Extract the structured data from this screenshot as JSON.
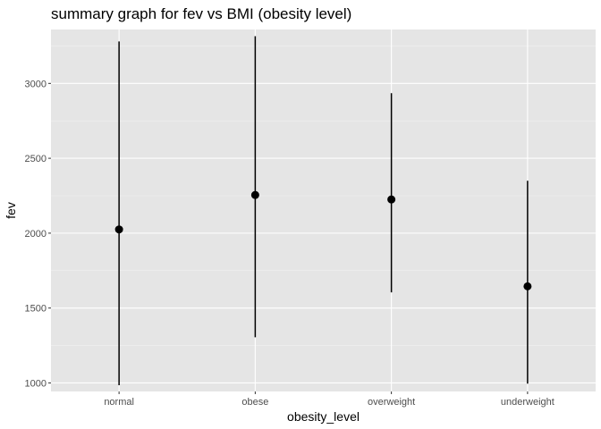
{
  "chart_data": {
    "type": "scatter",
    "title": "summary graph for fev vs BMI (obesity level)",
    "xlabel": "obesity_level",
    "ylabel": "fev",
    "categories": [
      "normal",
      "obese",
      "overweight",
      "underweight"
    ],
    "points": [
      {
        "x": "normal",
        "y": 2025,
        "ymin": 985,
        "ymax": 3280
      },
      {
        "x": "obese",
        "y": 2255,
        "ymin": 1305,
        "ymax": 3315
      },
      {
        "x": "overweight",
        "y": 2225,
        "ymin": 1605,
        "ymax": 2935
      },
      {
        "x": "underweight",
        "y": 1645,
        "ymin": 995,
        "ymax": 2350
      }
    ],
    "ylim": [
      943,
      3360
    ],
    "yticks": [
      1000,
      1500,
      2000,
      2500,
      3000
    ],
    "grid": true,
    "legend": "none",
    "colors": {
      "panel_background": "#e5e5e5",
      "grid_major": "#ffffff",
      "grid_minor": "#f2f2f2",
      "mark": "#000000",
      "tick_text": "#4d4d4d"
    }
  }
}
